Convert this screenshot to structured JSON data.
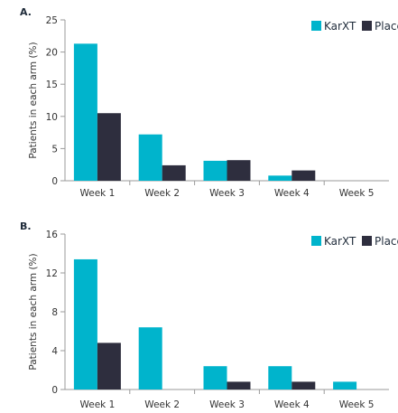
{
  "chart_data": [
    {
      "type": "bar",
      "panel": "A.",
      "title": "",
      "xlabel": "",
      "ylabel": "Patients in each arm (%)",
      "ylim": [
        0,
        25
      ],
      "yticks": [
        0,
        5,
        10,
        15,
        20,
        25
      ],
      "categories": [
        "Week 1",
        "Week 2",
        "Week 3",
        "Week 4",
        "Week 5"
      ],
      "series": [
        {
          "name": "KarXT",
          "color": "#00b4cc",
          "values": [
            21.3,
            7.2,
            3.1,
            0.8,
            0
          ]
        },
        {
          "name": "Placebo",
          "color": "#2e2e3e",
          "values": [
            10.5,
            2.4,
            3.2,
            1.6,
            0
          ]
        }
      ],
      "legend": "top-right",
      "grid": false
    },
    {
      "type": "bar",
      "panel": "B.",
      "title": "",
      "xlabel": "",
      "ylabel": "Patients in each arm (%)",
      "ylim": [
        0,
        16
      ],
      "yticks": [
        0,
        4,
        8,
        12,
        16
      ],
      "categories": [
        "Week 1",
        "Week 2",
        "Week 3",
        "Week 4",
        "Week 5"
      ],
      "series": [
        {
          "name": "KarXT",
          "color": "#00b4cc",
          "values": [
            13.4,
            6.4,
            2.4,
            2.4,
            0.8
          ]
        },
        {
          "name": "Placebo",
          "color": "#2e2e3e",
          "values": [
            4.8,
            0,
            0.8,
            0.8,
            0
          ]
        }
      ],
      "legend": "top-right",
      "grid": false
    }
  ]
}
